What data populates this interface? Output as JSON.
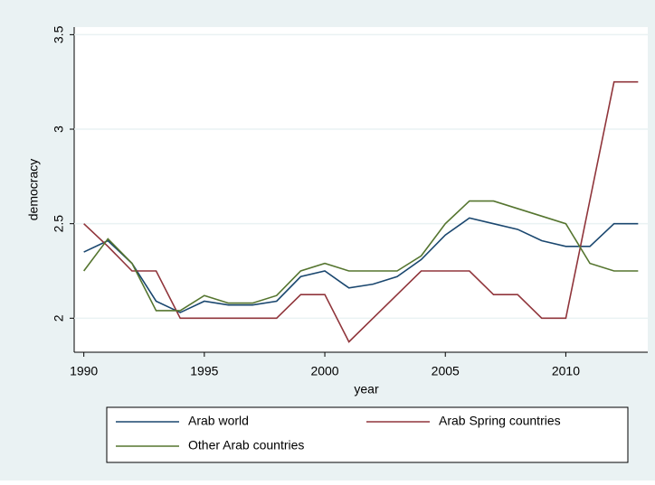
{
  "chart_data": {
    "type": "line",
    "x_label": "year",
    "y_label": "democracy",
    "x": [
      1990,
      1991,
      1992,
      1993,
      1994,
      1995,
      1996,
      1997,
      1998,
      1999,
      2000,
      2001,
      2002,
      2003,
      2004,
      2005,
      2006,
      2007,
      2008,
      2009,
      2010,
      2011,
      2012,
      2013
    ],
    "series": [
      {
        "name": "Arab world",
        "color": "#1a476f",
        "values": [
          2.35,
          2.41,
          2.29,
          2.09,
          2.03,
          2.09,
          2.07,
          2.07,
          2.09,
          2.22,
          2.25,
          2.16,
          2.18,
          2.22,
          2.31,
          2.44,
          2.53,
          2.5,
          2.47,
          2.41,
          2.38,
          2.38,
          2.5,
          2.5
        ]
      },
      {
        "name": "Arab Spring countries",
        "color": "#90353b",
        "values": [
          2.5,
          2.38,
          2.25,
          2.25,
          2.0,
          2.0,
          2.0,
          2.0,
          2.0,
          2.125,
          2.125,
          1.875,
          2.0,
          2.125,
          2.25,
          2.25,
          2.25,
          2.125,
          2.125,
          2.0,
          2.0,
          2.625,
          3.25,
          3.25
        ]
      },
      {
        "name": "Other Arab countries",
        "color": "#55752f",
        "values": [
          2.25,
          2.42,
          2.29,
          2.04,
          2.04,
          2.12,
          2.08,
          2.08,
          2.12,
          2.25,
          2.29,
          2.25,
          2.25,
          2.25,
          2.33,
          2.5,
          2.62,
          2.62,
          2.58,
          2.54,
          2.5,
          2.29,
          2.25,
          2.25
        ]
      }
    ],
    "xlim": [
      1989.6,
      2013.4
    ],
    "xticks": [
      1990,
      1995,
      2000,
      2005,
      2010
    ],
    "ylim": [
      1.82,
      3.54
    ],
    "yticks": [
      2,
      2.5,
      3,
      3.5
    ],
    "grid": true,
    "legend": "bottom"
  }
}
